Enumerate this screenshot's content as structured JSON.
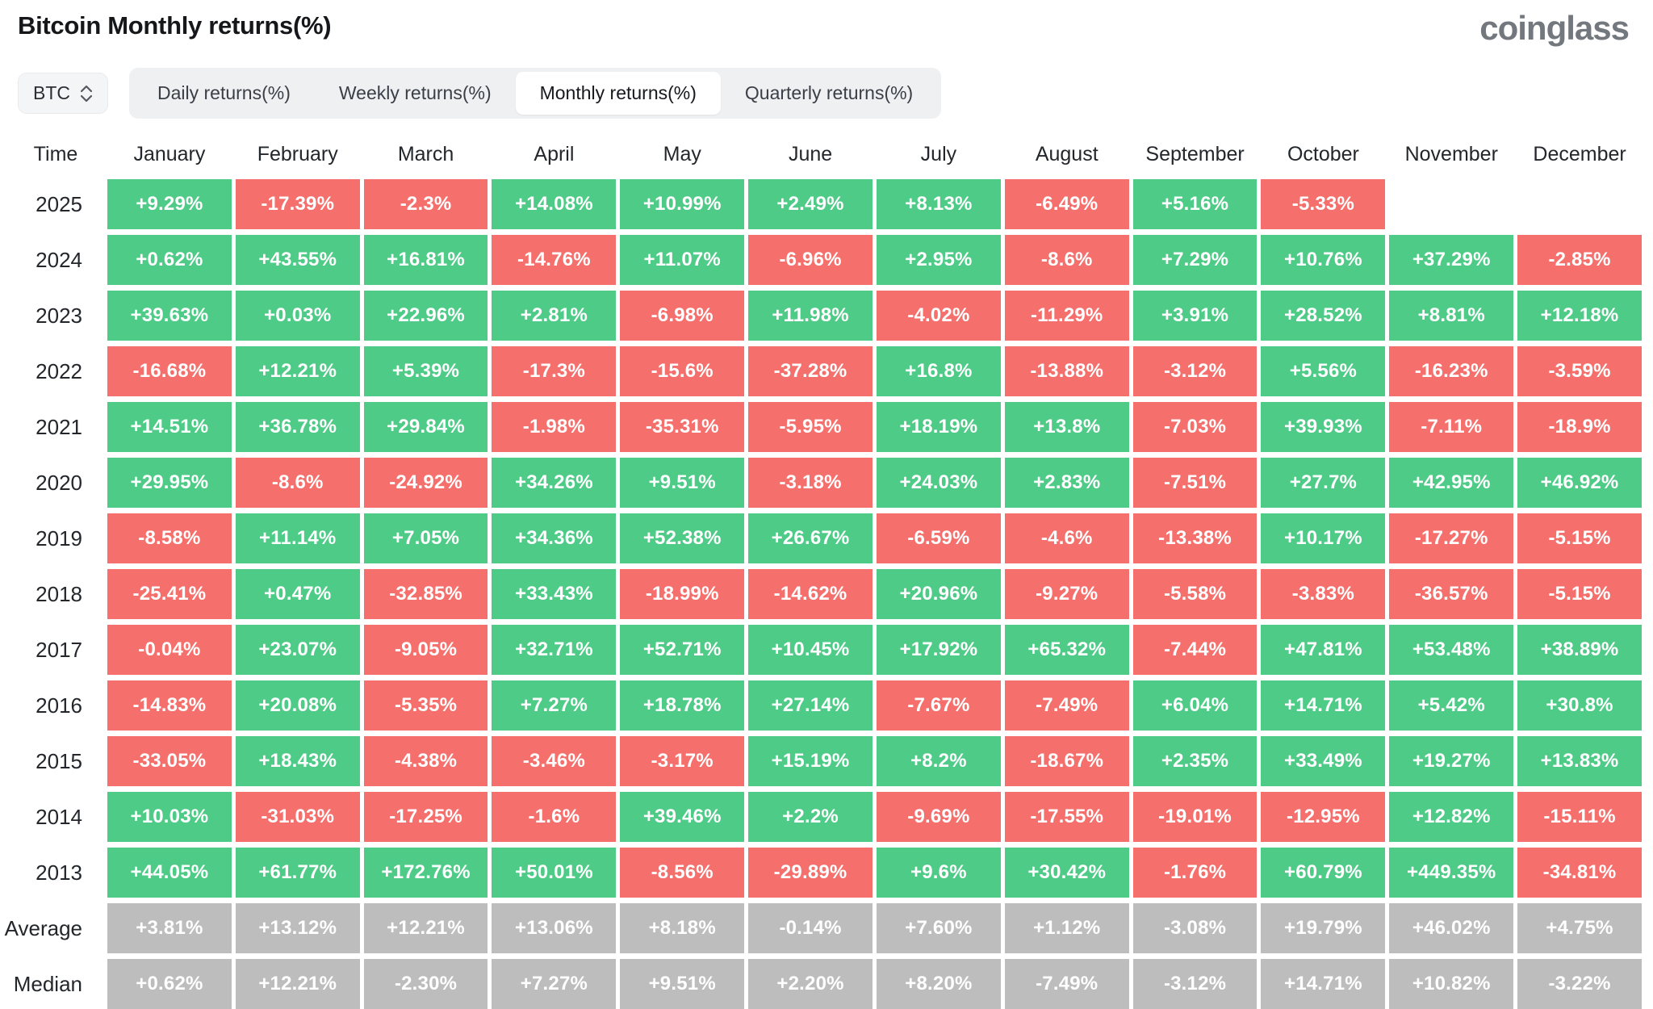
{
  "page": {
    "title": "Bitcoin Monthly returns(%)",
    "logo": "coinglass"
  },
  "controls": {
    "symbol": "BTC",
    "symbol_icon": "up-down-chevron-icon",
    "tabs": [
      {
        "label": "Daily returns(%)",
        "selected": false
      },
      {
        "label": "Weekly returns(%)",
        "selected": false
      },
      {
        "label": "Monthly returns(%)",
        "selected": true
      },
      {
        "label": "Quarterly returns(%)",
        "selected": false
      }
    ]
  },
  "colors": {
    "positive": "#4fcb88",
    "negative": "#f5706c",
    "neutral": "#bdbdbd"
  },
  "chart_data": {
    "type": "heatmap",
    "title": "Bitcoin Monthly returns(%)",
    "row_header": "Time",
    "columns": [
      "January",
      "February",
      "March",
      "April",
      "May",
      "June",
      "July",
      "August",
      "September",
      "October",
      "November",
      "December"
    ],
    "rows": [
      {
        "label": "2025",
        "summary": false,
        "values": [
          "+9.29%",
          "-17.39%",
          "-2.3%",
          "+14.08%",
          "+10.99%",
          "+2.49%",
          "+8.13%",
          "-6.49%",
          "+5.16%",
          "-5.33%",
          "",
          ""
        ]
      },
      {
        "label": "2024",
        "summary": false,
        "values": [
          "+0.62%",
          "+43.55%",
          "+16.81%",
          "-14.76%",
          "+11.07%",
          "-6.96%",
          "+2.95%",
          "-8.6%",
          "+7.29%",
          "+10.76%",
          "+37.29%",
          "-2.85%"
        ]
      },
      {
        "label": "2023",
        "summary": false,
        "values": [
          "+39.63%",
          "+0.03%",
          "+22.96%",
          "+2.81%",
          "-6.98%",
          "+11.98%",
          "-4.02%",
          "-11.29%",
          "+3.91%",
          "+28.52%",
          "+8.81%",
          "+12.18%"
        ]
      },
      {
        "label": "2022",
        "summary": false,
        "values": [
          "-16.68%",
          "+12.21%",
          "+5.39%",
          "-17.3%",
          "-15.6%",
          "-37.28%",
          "+16.8%",
          "-13.88%",
          "-3.12%",
          "+5.56%",
          "-16.23%",
          "-3.59%"
        ]
      },
      {
        "label": "2021",
        "summary": false,
        "values": [
          "+14.51%",
          "+36.78%",
          "+29.84%",
          "-1.98%",
          "-35.31%",
          "-5.95%",
          "+18.19%",
          "+13.8%",
          "-7.03%",
          "+39.93%",
          "-7.11%",
          "-18.9%"
        ]
      },
      {
        "label": "2020",
        "summary": false,
        "values": [
          "+29.95%",
          "-8.6%",
          "-24.92%",
          "+34.26%",
          "+9.51%",
          "-3.18%",
          "+24.03%",
          "+2.83%",
          "-7.51%",
          "+27.7%",
          "+42.95%",
          "+46.92%"
        ]
      },
      {
        "label": "2019",
        "summary": false,
        "values": [
          "-8.58%",
          "+11.14%",
          "+7.05%",
          "+34.36%",
          "+52.38%",
          "+26.67%",
          "-6.59%",
          "-4.6%",
          "-13.38%",
          "+10.17%",
          "-17.27%",
          "-5.15%"
        ]
      },
      {
        "label": "2018",
        "summary": false,
        "values": [
          "-25.41%",
          "+0.47%",
          "-32.85%",
          "+33.43%",
          "-18.99%",
          "-14.62%",
          "+20.96%",
          "-9.27%",
          "-5.58%",
          "-3.83%",
          "-36.57%",
          "-5.15%"
        ]
      },
      {
        "label": "2017",
        "summary": false,
        "values": [
          "-0.04%",
          "+23.07%",
          "-9.05%",
          "+32.71%",
          "+52.71%",
          "+10.45%",
          "+17.92%",
          "+65.32%",
          "-7.44%",
          "+47.81%",
          "+53.48%",
          "+38.89%"
        ]
      },
      {
        "label": "2016",
        "summary": false,
        "values": [
          "-14.83%",
          "+20.08%",
          "-5.35%",
          "+7.27%",
          "+18.78%",
          "+27.14%",
          "-7.67%",
          "-7.49%",
          "+6.04%",
          "+14.71%",
          "+5.42%",
          "+30.8%"
        ]
      },
      {
        "label": "2015",
        "summary": false,
        "values": [
          "-33.05%",
          "+18.43%",
          "-4.38%",
          "-3.46%",
          "-3.17%",
          "+15.19%",
          "+8.2%",
          "-18.67%",
          "+2.35%",
          "+33.49%",
          "+19.27%",
          "+13.83%"
        ]
      },
      {
        "label": "2014",
        "summary": false,
        "values": [
          "+10.03%",
          "-31.03%",
          "-17.25%",
          "-1.6%",
          "+39.46%",
          "+2.2%",
          "-9.69%",
          "-17.55%",
          "-19.01%",
          "-12.95%",
          "+12.82%",
          "-15.11%"
        ]
      },
      {
        "label": "2013",
        "summary": false,
        "values": [
          "+44.05%",
          "+61.77%",
          "+172.76%",
          "+50.01%",
          "-8.56%",
          "-29.89%",
          "+9.6%",
          "+30.42%",
          "-1.76%",
          "+60.79%",
          "+449.35%",
          "-34.81%"
        ]
      },
      {
        "label": "Average",
        "summary": true,
        "values": [
          "+3.81%",
          "+13.12%",
          "+12.21%",
          "+13.06%",
          "+8.18%",
          "-0.14%",
          "+7.60%",
          "+1.12%",
          "-3.08%",
          "+19.79%",
          "+46.02%",
          "+4.75%"
        ]
      },
      {
        "label": "Median",
        "summary": true,
        "values": [
          "+0.62%",
          "+12.21%",
          "-2.30%",
          "+7.27%",
          "+9.51%",
          "+2.20%",
          "+8.20%",
          "-7.49%",
          "-3.12%",
          "+14.71%",
          "+10.82%",
          "-3.22%"
        ]
      }
    ]
  }
}
